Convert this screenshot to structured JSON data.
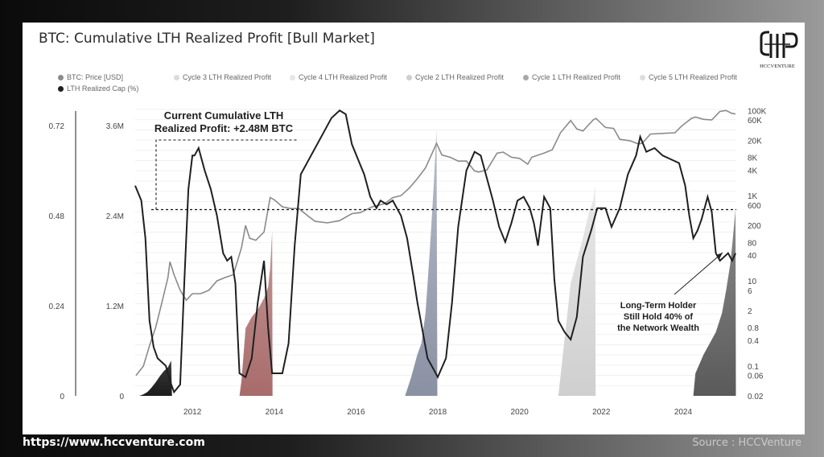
{
  "title": "BTC: Cumulative LTH Realized Profit [Bull Market]",
  "logo_text": "HCCVENTURE",
  "footer": {
    "url": "https://www.hccventure.com",
    "source": "Source : HCCVenture"
  },
  "legend": [
    {
      "label": "BTC: Price [USD]",
      "color": "#8a8a8a"
    },
    {
      "label": "Cycle 3 LTH Realized Profit",
      "color": "#d9d9d9"
    },
    {
      "label": "Cycle 4 LTH Realized Profit",
      "color": "#e6e6e6"
    },
    {
      "label": "Cycle 2 LTH Realized Profit",
      "color": "#cfcfcf"
    },
    {
      "label": "Cycle 1 LTH Realized Profit",
      "color": "#a8a8a8"
    },
    {
      "label": "Cycle 5 LTH Realized Profit",
      "color": "#dddddd"
    },
    {
      "label": "LTH Realized Cap (%)",
      "color": "#1f1f1f"
    }
  ],
  "annotations": {
    "current_line1": "Current Cumulative LTH",
    "current_line2": "Realized Profit: +2.48M BTC",
    "holder_line1": "Long-Term Holder",
    "holder_line2": "Still Hold 40% of",
    "holder_line3": "the Network Wealth"
  },
  "chart_data": {
    "type": "area",
    "title": "BTC: Cumulative LTH Realized Profit [Bull Market]",
    "x_ticks": [
      "2012",
      "2014",
      "2016",
      "2018",
      "2020",
      "2022",
      "2024"
    ],
    "x_range": [
      2010.6,
      2025.3
    ],
    "left_axis_pct": {
      "ticks": [
        "0",
        "0.24",
        "0.48",
        "0.72"
      ],
      "range": [
        0,
        0.72
      ]
    },
    "left_axis_btc": {
      "ticks": [
        "0",
        "1.2M",
        "2.4M",
        "3.6M"
      ],
      "range": [
        0,
        3600000
      ]
    },
    "right_axis_price": {
      "scale": "log",
      "ticks": [
        "0.02",
        "0.06",
        "0.1",
        "0.4",
        "0.8",
        "2",
        "6",
        "10",
        "40",
        "80",
        "200",
        "600",
        "1K",
        "4K",
        "8K",
        "20K",
        "60K",
        "100K"
      ],
      "range": [
        0.02,
        150000
      ]
    },
    "reference_level_btc": 2480000,
    "series": [
      {
        "name": "BTC: Price [USD]",
        "color": "#8a8a8a",
        "points": [
          [
            2010.62,
            0.06
          ],
          [
            2010.8,
            0.1
          ],
          [
            2010.95,
            0.3
          ],
          [
            2011.1,
            0.8
          ],
          [
            2011.25,
            3
          ],
          [
            2011.4,
            12
          ],
          [
            2011.45,
            28
          ],
          [
            2011.55,
            14
          ],
          [
            2011.7,
            6
          ],
          [
            2011.85,
            3.5
          ],
          [
            2012.0,
            5
          ],
          [
            2012.2,
            5
          ],
          [
            2012.4,
            6
          ],
          [
            2012.6,
            10
          ],
          [
            2012.8,
            12
          ],
          [
            2013.0,
            14
          ],
          [
            2013.2,
            60
          ],
          [
            2013.3,
            200
          ],
          [
            2013.4,
            100
          ],
          [
            2013.55,
            90
          ],
          [
            2013.75,
            140
          ],
          [
            2013.9,
            900
          ],
          [
            2014.0,
            800
          ],
          [
            2014.2,
            550
          ],
          [
            2014.4,
            500
          ],
          [
            2014.6,
            500
          ],
          [
            2014.8,
            350
          ],
          [
            2015.0,
            250
          ],
          [
            2015.3,
            230
          ],
          [
            2015.6,
            260
          ],
          [
            2015.9,
            380
          ],
          [
            2016.1,
            400
          ],
          [
            2016.4,
            550
          ],
          [
            2016.7,
            650
          ],
          [
            2016.9,
            900
          ],
          [
            2017.1,
            1000
          ],
          [
            2017.3,
            1500
          ],
          [
            2017.5,
            2500
          ],
          [
            2017.7,
            4500
          ],
          [
            2017.9,
            12000
          ],
          [
            2017.97,
            17000
          ],
          [
            2018.1,
            9000
          ],
          [
            2018.3,
            8000
          ],
          [
            2018.5,
            6500
          ],
          [
            2018.7,
            6500
          ],
          [
            2018.9,
            3800
          ],
          [
            2019.0,
            3600
          ],
          [
            2019.2,
            4000
          ],
          [
            2019.45,
            10000
          ],
          [
            2019.6,
            10500
          ],
          [
            2019.8,
            8000
          ],
          [
            2020.0,
            7500
          ],
          [
            2020.2,
            5500
          ],
          [
            2020.3,
            8000
          ],
          [
            2020.6,
            10000
          ],
          [
            2020.8,
            12000
          ],
          [
            2021.0,
            30000
          ],
          [
            2021.25,
            58000
          ],
          [
            2021.4,
            37000
          ],
          [
            2021.55,
            33000
          ],
          [
            2021.8,
            60000
          ],
          [
            2021.87,
            65000
          ],
          [
            2022.1,
            40000
          ],
          [
            2022.3,
            38000
          ],
          [
            2022.45,
            21000
          ],
          [
            2022.7,
            19500
          ],
          [
            2022.9,
            16500
          ],
          [
            2023.0,
            17000
          ],
          [
            2023.2,
            28000
          ],
          [
            2023.5,
            29000
          ],
          [
            2023.8,
            30000
          ],
          [
            2023.95,
            42000
          ],
          [
            2024.2,
            65000
          ],
          [
            2024.3,
            70000
          ],
          [
            2024.5,
            62000
          ],
          [
            2024.7,
            60000
          ],
          [
            2024.9,
            95000
          ],
          [
            2025.05,
            100000
          ],
          [
            2025.2,
            85000
          ],
          [
            2025.28,
            83000
          ]
        ]
      },
      {
        "name": "LTH Realized Cap (%)",
        "color": "#1f1f1f",
        "points": [
          [
            2010.6,
            0.56
          ],
          [
            2010.75,
            0.52
          ],
          [
            2010.85,
            0.42
          ],
          [
            2010.95,
            0.2
          ],
          [
            2011.05,
            0.13
          ],
          [
            2011.15,
            0.1
          ],
          [
            2011.25,
            0.09
          ],
          [
            2011.35,
            0.08
          ],
          [
            2011.45,
            0.04
          ],
          [
            2011.55,
            0.01
          ],
          [
            2011.7,
            0.03
          ],
          [
            2011.8,
            0.3
          ],
          [
            2011.9,
            0.55
          ],
          [
            2012.0,
            0.64
          ],
          [
            2012.05,
            0.64
          ],
          [
            2012.15,
            0.66
          ],
          [
            2012.3,
            0.6
          ],
          [
            2012.45,
            0.55
          ],
          [
            2012.6,
            0.48
          ],
          [
            2012.75,
            0.38
          ],
          [
            2012.85,
            0.36
          ],
          [
            2012.95,
            0.37
          ],
          [
            2013.05,
            0.3
          ],
          [
            2013.15,
            0.06
          ],
          [
            2013.3,
            0.05
          ],
          [
            2013.45,
            0.1
          ],
          [
            2013.6,
            0.25
          ],
          [
            2013.75,
            0.36
          ],
          [
            2013.85,
            0.18
          ],
          [
            2013.95,
            0.06
          ],
          [
            2014.05,
            0.06
          ],
          [
            2014.2,
            0.06
          ],
          [
            2014.35,
            0.14
          ],
          [
            2014.5,
            0.4
          ],
          [
            2014.65,
            0.59
          ],
          [
            2014.8,
            0.62
          ],
          [
            2015.0,
            0.66
          ],
          [
            2015.2,
            0.7
          ],
          [
            2015.4,
            0.74
          ],
          [
            2015.6,
            0.76
          ],
          [
            2015.75,
            0.75
          ],
          [
            2015.9,
            0.67
          ],
          [
            2016.05,
            0.63
          ],
          [
            2016.2,
            0.59
          ],
          [
            2016.35,
            0.53
          ],
          [
            2016.5,
            0.5
          ],
          [
            2016.6,
            0.52
          ],
          [
            2016.75,
            0.51
          ],
          [
            2016.9,
            0.52
          ],
          [
            2017.0,
            0.5
          ],
          [
            2017.1,
            0.48
          ],
          [
            2017.25,
            0.42
          ],
          [
            2017.4,
            0.32
          ],
          [
            2017.5,
            0.25
          ],
          [
            2017.6,
            0.19
          ],
          [
            2017.75,
            0.1
          ],
          [
            2017.9,
            0.07
          ],
          [
            2018.0,
            0.05
          ],
          [
            2018.2,
            0.1
          ],
          [
            2018.35,
            0.25
          ],
          [
            2018.5,
            0.45
          ],
          [
            2018.7,
            0.6
          ],
          [
            2018.9,
            0.65
          ],
          [
            2019.05,
            0.64
          ],
          [
            2019.2,
            0.58
          ],
          [
            2019.35,
            0.52
          ],
          [
            2019.5,
            0.45
          ],
          [
            2019.65,
            0.41
          ],
          [
            2019.8,
            0.46
          ],
          [
            2019.95,
            0.52
          ],
          [
            2020.1,
            0.53
          ],
          [
            2020.25,
            0.5
          ],
          [
            2020.35,
            0.46
          ],
          [
            2020.45,
            0.4
          ],
          [
            2020.6,
            0.53
          ],
          [
            2020.75,
            0.5
          ],
          [
            2020.85,
            0.31
          ],
          [
            2020.95,
            0.2
          ],
          [
            2021.1,
            0.17
          ],
          [
            2021.25,
            0.15
          ],
          [
            2021.4,
            0.21
          ],
          [
            2021.55,
            0.37
          ],
          [
            2021.75,
            0.44
          ],
          [
            2021.9,
            0.5
          ],
          [
            2022.1,
            0.5
          ],
          [
            2022.25,
            0.45
          ],
          [
            2022.45,
            0.5
          ],
          [
            2022.65,
            0.59
          ],
          [
            2022.85,
            0.64
          ],
          [
            2022.95,
            0.69
          ],
          [
            2023.1,
            0.65
          ],
          [
            2023.3,
            0.66
          ],
          [
            2023.5,
            0.64
          ],
          [
            2023.7,
            0.63
          ],
          [
            2023.9,
            0.62
          ],
          [
            2024.05,
            0.56
          ],
          [
            2024.15,
            0.48
          ],
          [
            2024.25,
            0.42
          ],
          [
            2024.35,
            0.44
          ],
          [
            2024.45,
            0.47
          ],
          [
            2024.6,
            0.53
          ],
          [
            2024.7,
            0.49
          ],
          [
            2024.8,
            0.38
          ],
          [
            2024.9,
            0.36
          ],
          [
            2025.0,
            0.37
          ],
          [
            2025.1,
            0.38
          ],
          [
            2025.2,
            0.36
          ],
          [
            2025.28,
            0.38
          ]
        ]
      },
      {
        "name": "Cycle 1 LTH Realized Profit",
        "color": "#1f1f1f",
        "points": [
          [
            2010.7,
            0
          ],
          [
            2010.8,
            20000
          ],
          [
            2010.9,
            50000
          ],
          [
            2011.0,
            110000
          ],
          [
            2011.1,
            180000
          ],
          [
            2011.2,
            260000
          ],
          [
            2011.3,
            330000
          ],
          [
            2011.4,
            380000
          ],
          [
            2011.48,
            470000
          ],
          [
            2011.5,
            0
          ]
        ]
      },
      {
        "name": "Cycle 2 LTH Realized Profit",
        "color": "#b27a7a",
        "points": [
          [
            2013.15,
            0
          ],
          [
            2013.2,
            200000
          ],
          [
            2013.3,
            900000
          ],
          [
            2013.45,
            1050000
          ],
          [
            2013.6,
            1150000
          ],
          [
            2013.75,
            1300000
          ],
          [
            2013.85,
            1450000
          ],
          [
            2013.9,
            1700000
          ],
          [
            2013.95,
            2200000
          ],
          [
            2013.96,
            0
          ]
        ]
      },
      {
        "name": "Cycle 3 LTH Realized Profit",
        "color": "#9aa1b3",
        "points": [
          [
            2017.2,
            0
          ],
          [
            2017.35,
            250000
          ],
          [
            2017.5,
            550000
          ],
          [
            2017.6,
            700000
          ],
          [
            2017.7,
            1100000
          ],
          [
            2017.8,
            1900000
          ],
          [
            2017.9,
            2800000
          ],
          [
            2017.97,
            3550000
          ],
          [
            2017.99,
            0
          ]
        ]
      },
      {
        "name": "Cycle 4 LTH Realized Profit",
        "color": "#dcdcdc",
        "points": [
          [
            2020.95,
            0
          ],
          [
            2021.05,
            500000
          ],
          [
            2021.15,
            1000000
          ],
          [
            2021.25,
            1500000
          ],
          [
            2021.4,
            1800000
          ],
          [
            2021.55,
            2100000
          ],
          [
            2021.7,
            2450000
          ],
          [
            2021.8,
            2600000
          ],
          [
            2021.85,
            2800000
          ],
          [
            2021.86,
            0
          ]
        ]
      },
      {
        "name": "Cycle 5 LTH Realized Profit",
        "color": "#707070",
        "points": [
          [
            2024.25,
            0
          ],
          [
            2024.3,
            300000
          ],
          [
            2024.5,
            550000
          ],
          [
            2024.65,
            700000
          ],
          [
            2024.8,
            850000
          ],
          [
            2024.95,
            1100000
          ],
          [
            2025.05,
            1400000
          ],
          [
            2025.15,
            1750000
          ],
          [
            2025.2,
            2000000
          ],
          [
            2025.28,
            2480000
          ],
          [
            2025.29,
            0
          ]
        ]
      }
    ]
  }
}
